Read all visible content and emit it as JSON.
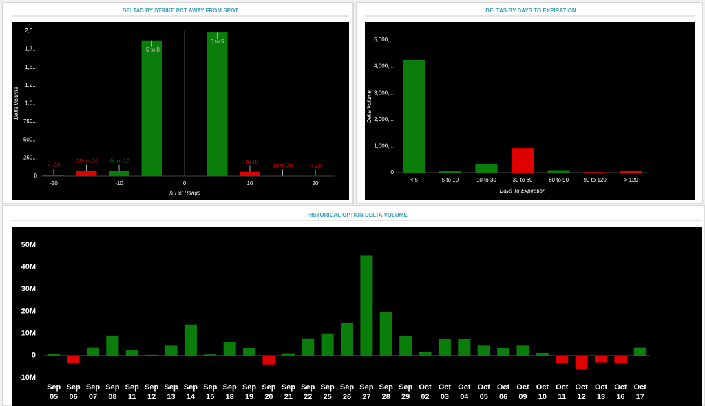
{
  "chart_data": [
    {
      "type": "bar",
      "title": "DELTAS BY STRIKE PCT AWAY FROM SPOT",
      "x_label": "% Pct Range",
      "y_label": "Delta Volume",
      "categories": [
        "< -20",
        "-20 to -10",
        "-5 to -10",
        "-5 to 0",
        "0 to 5",
        "5 to 10",
        "10 to 20",
        "> 20"
      ],
      "x": [
        -20,
        -15,
        -10,
        -5,
        5,
        10,
        15,
        20
      ],
      "values": [
        15,
        70,
        70,
        1870,
        1980,
        60,
        5,
        3
      ],
      "colors": [
        "#e00000",
        "#e00000",
        "#0a7d0a",
        "#0a7d0a",
        "#0a7d0a",
        "#e00000",
        "#e00000",
        "#e00000"
      ],
      "xlim": [
        -22,
        23
      ],
      "xticks": [
        -20,
        -10,
        0,
        10,
        20
      ],
      "ylim": [
        0,
        2000
      ],
      "yticks": [
        {
          "value": 2000,
          "label": "2,0..."
        },
        {
          "value": 1750,
          "label": "1,7..."
        },
        {
          "value": 1500,
          "label": "1,5..."
        },
        {
          "value": 1250,
          "label": "1,2..."
        },
        {
          "value": 1000,
          "label": "1,0..."
        },
        {
          "value": 750,
          "label": "750..."
        },
        {
          "value": 500,
          "label": "500..."
        },
        {
          "value": 250,
          "label": "250..."
        },
        0
      ]
    },
    {
      "type": "bar",
      "title": "DELTAS BY DAYS TO EXPIRATION",
      "x_label": "Days To Expiration",
      "y_label": "Delta Volume",
      "categories": [
        "< 5",
        "5 to 10",
        "10 to 30",
        "30 to 60",
        "60 to 90",
        "90 to 120",
        "> 120"
      ],
      "values": [
        4250,
        50,
        340,
        930,
        90,
        20,
        70
      ],
      "colors": [
        "#0a7d0a",
        "#0a7d0a",
        "#0a7d0a",
        "#e00000",
        "#0a7d0a",
        "#e00000",
        "#e00000"
      ],
      "ylim": [
        0,
        5000
      ],
      "yticks": [
        {
          "value": 5000,
          "label": "5,000,..."
        },
        {
          "value": 4000,
          "label": "4,000,..."
        },
        {
          "value": 3000,
          "label": "3,000,..."
        },
        {
          "value": 2000,
          "label": "2,000,..."
        },
        {
          "value": 1000,
          "label": "1,000,..."
        },
        0
      ]
    },
    {
      "type": "bar",
      "title": "HISTORICAL OPTION DELTA VOLUME",
      "categories": [
        [
          "Sep",
          "05"
        ],
        [
          "Sep",
          "06"
        ],
        [
          "Sep",
          "07"
        ],
        [
          "Sep",
          "08"
        ],
        [
          "Sep",
          "11"
        ],
        [
          "Sep",
          "12"
        ],
        [
          "Sep",
          "13"
        ],
        [
          "Sep",
          "14"
        ],
        [
          "Sep",
          "15"
        ],
        [
          "Sep",
          "18"
        ],
        [
          "Sep",
          "19"
        ],
        [
          "Sep",
          "20"
        ],
        [
          "Sep",
          "21"
        ],
        [
          "Sep",
          "22"
        ],
        [
          "Sep",
          "25"
        ],
        [
          "Sep",
          "26"
        ],
        [
          "Sep",
          "27"
        ],
        [
          "Sep",
          "28"
        ],
        [
          "Sep",
          "29"
        ],
        [
          "Oct",
          "02"
        ],
        [
          "Oct",
          "03"
        ],
        [
          "Oct",
          "04"
        ],
        [
          "Oct",
          "05"
        ],
        [
          "Oct",
          "06"
        ],
        [
          "Oct",
          "09"
        ],
        [
          "Oct",
          "10"
        ],
        [
          "Oct",
          "11"
        ],
        [
          "Oct",
          "12"
        ],
        [
          "Oct",
          "13"
        ],
        [
          "Oct",
          "16"
        ],
        [
          "Oct",
          "17"
        ]
      ],
      "values": [
        900000,
        -3500000,
        3800000,
        9000000,
        2500000,
        300000,
        4500000,
        14000000,
        500000,
        6200000,
        3500000,
        -4000000,
        1000000,
        7800000,
        10000000,
        14800000,
        45200000,
        19700000,
        8800000,
        1500000,
        7700000,
        7500000,
        4500000,
        3600000,
        4500000,
        1200000,
        -3500000,
        -6000000,
        -3000000,
        -3500000,
        3800000
      ],
      "color": "#0a7d0a",
      "negative_color": "#e00000",
      "ylim": [
        -10000000,
        50000000
      ],
      "yticks": [
        {
          "value": 50000000,
          "label": "50M"
        },
        {
          "value": 40000000,
          "label": "40M"
        },
        {
          "value": 30000000,
          "label": "30M"
        },
        {
          "value": 20000000,
          "label": "20M"
        },
        {
          "value": 10000000,
          "label": "10M"
        },
        0,
        {
          "value": -10000000,
          "label": "-10M"
        }
      ]
    }
  ]
}
